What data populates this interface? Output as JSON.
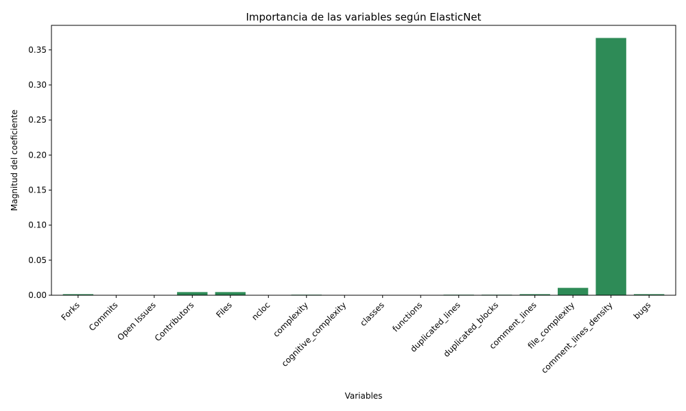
{
  "chart_data": {
    "type": "bar",
    "title": "Importancia de las variables según ElasticNet",
    "xlabel": "Variables",
    "ylabel": "Magnitud del coeficiente",
    "categories": [
      "Forks",
      "Commits",
      "Open Issues",
      "Contributors",
      "Files",
      "ncloc",
      "complexity",
      "cognitive_complexity",
      "classes",
      "functions",
      "duplicated_lines",
      "duplicated_blocks",
      "comment_lines",
      "file_complexity",
      "comment_lines_density",
      "bugs"
    ],
    "values": [
      0.0015,
      0.0,
      0.0,
      0.0045,
      0.0045,
      0.0,
      0.0008,
      0.0,
      0.0,
      0.0,
      0.0008,
      0.0008,
      0.0015,
      0.0105,
      0.367,
      0.0015
    ],
    "yticks": [
      0.0,
      0.05,
      0.1,
      0.15,
      0.2,
      0.25,
      0.3,
      0.35
    ],
    "ytick_labels": [
      "0.00",
      "0.05",
      "0.10",
      "0.15",
      "0.20",
      "0.25",
      "0.30",
      "0.35"
    ],
    "ylim": [
      0,
      0.385
    ],
    "bar_color": "#2e8b57",
    "grid": false,
    "legend": false
  }
}
